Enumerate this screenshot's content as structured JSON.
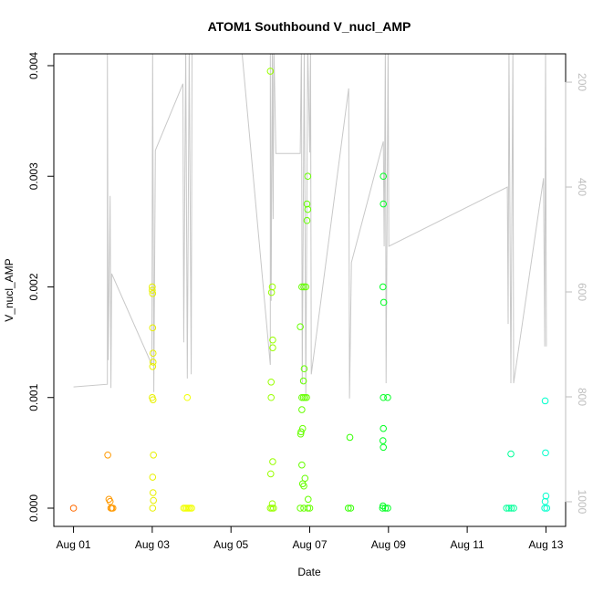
{
  "chart_data": {
    "type": "scatter",
    "title": "ATOM1 Southbound V_nucl_AMP",
    "x_label": "Date",
    "y_label": "V_nucl_AMP",
    "xlim": [
      0.5,
      13.5
    ],
    "xticks": [
      {
        "value": 1,
        "label": "Aug 01"
      },
      {
        "value": 3,
        "label": "Aug 03"
      },
      {
        "value": 5,
        "label": "Aug 05"
      },
      {
        "value": 7,
        "label": "Aug 07"
      },
      {
        "value": 9,
        "label": "Aug 09"
      },
      {
        "value": 11,
        "label": "Aug 11"
      },
      {
        "value": 13,
        "label": "Aug 13"
      }
    ],
    "ylim": [
      -0.000165,
      0.004107
    ],
    "yticks": [
      {
        "value": 0,
        "label": "0.000"
      },
      0.001,
      0.002,
      0.003,
      0.004
    ],
    "y2lim": [
      1047,
      146
    ],
    "y2ticks": [
      200,
      400,
      600,
      800,
      1000
    ],
    "y2_color": "#bebebe",
    "series": [
      {
        "color": "#ff6a00",
        "x": [
          1.0
        ],
        "values": [
          0
        ]
      },
      {
        "color": "#ff9900",
        "x": [
          1.87,
          1.9,
          1.93,
          1.95,
          1.97,
          2.0
        ],
        "values": [
          0.00048,
          8e-05,
          6e-05,
          0,
          0,
          0
        ]
      },
      {
        "color": "#e8f000",
        "x": [
          3.0,
          3.0,
          3.01,
          3.01,
          3.02,
          3.02,
          3.01,
          3.0,
          3.02,
          3.03,
          3.01,
          3.02,
          3.03,
          3.01
        ],
        "values": [
          0.002,
          0.00197,
          0.00194,
          0.00163,
          0.0014,
          0.00132,
          0.00128,
          0.001,
          0.00098,
          0.00048,
          0.00028,
          0.00014,
          7e-05,
          0
        ]
      },
      {
        "color": "#f2ff00",
        "x": [
          3.89,
          3.8,
          3.84,
          3.88,
          3.92,
          3.96,
          4.0
        ],
        "values": [
          0.001,
          0,
          0,
          0,
          0,
          0,
          0
        ]
      },
      {
        "color": "#99ff00",
        "x": [
          6.0,
          6.05,
          6.03,
          6.06,
          6.06,
          6.02,
          6.02,
          6.06,
          6.01,
          6.05,
          6.0,
          6.04,
          6.08
        ],
        "values": [
          0.00395,
          0.002,
          0.00195,
          0.00152,
          0.00145,
          0.00114,
          0.001,
          0.00042,
          0.00031,
          4e-05,
          0,
          0,
          0
        ]
      },
      {
        "color": "#66ff00",
        "x": [
          6.95,
          6.93,
          6.95,
          6.93,
          6.8,
          6.85,
          6.9,
          6.76,
          6.86,
          6.84,
          6.8,
          6.84,
          6.88,
          6.92,
          6.8,
          6.82,
          6.78,
          6.77,
          6.8,
          6.88,
          6.82,
          6.85,
          6.96,
          6.76,
          6.85,
          6.95,
          7.0
        ],
        "values": [
          0.003,
          0.00275,
          0.0027,
          0.0026,
          0.002,
          0.002,
          0.002,
          0.00164,
          0.00126,
          0.00115,
          0.001,
          0.001,
          0.001,
          0.001,
          0.00089,
          0.00072,
          0.00069,
          0.00067,
          0.00039,
          0.00027,
          0.00022,
          0.0002,
          8e-05,
          0,
          0,
          0,
          0
        ]
      },
      {
        "color": "#33ff00",
        "x": [
          8.02,
          7.98,
          8.04
        ],
        "values": [
          0.00064,
          0,
          0
        ]
      },
      {
        "color": "#00ff22",
        "x": [
          8.87,
          8.87,
          8.86,
          8.88,
          8.87,
          8.98,
          8.87,
          8.86,
          8.87,
          8.86,
          8.85,
          8.92,
          8.98
        ],
        "values": [
          0.003,
          0.00275,
          0.002,
          0.00186,
          0.001,
          0.001,
          0.00072,
          0.00061,
          0.00055,
          2e-05,
          0,
          0,
          0
        ]
      },
      {
        "color": "#00ff99",
        "x": [
          12.11,
          12.0,
          12.06,
          12.12,
          12.18
        ],
        "values": [
          0.00049,
          0,
          0,
          0,
          0
        ]
      },
      {
        "color": "#00ffcc",
        "x": [
          12.98,
          12.99,
          13.0,
          12.98,
          12.97,
          13.02
        ],
        "values": [
          0.00097,
          0.0005,
          0.00011,
          6e-05,
          0,
          0
        ]
      }
    ],
    "line": {
      "color": "#c8c8c8",
      "axis": "y2",
      "x": [
        1.0,
        1.86,
        1.86,
        1.88,
        1.93,
        1.95,
        1.97,
        2.99,
        3.01,
        3.04,
        3.08,
        3.78,
        3.8,
        3.85,
        3.89,
        3.94,
        3.99,
        4.01,
        5.28,
        6.0,
        6.0,
        6.02,
        6.05,
        6.07,
        6.09,
        6.14,
        6.76,
        6.79,
        6.81,
        6.86,
        6.9,
        6.95,
        7.0,
        7.02,
        7.04,
        7.99,
        8.01,
        8.06,
        8.87,
        8.89,
        8.92,
        8.94,
        8.99,
        9.01,
        12.02,
        12.04,
        12.06,
        12.11,
        12.16,
        12.18,
        12.94,
        12.97,
        12.99,
        13.01
      ],
      "values": [
        781,
        776,
        130,
        730,
        417,
        783,
        565,
        739,
        130,
        791,
        330,
        203,
        696,
        130,
        765,
        130,
        757,
        130,
        144,
        739,
        130,
        617,
        130,
        461,
        130,
        336,
        336,
        130,
        774,
        130,
        800,
        130,
        334,
        130,
        757,
        212,
        803,
        544,
        313,
        513,
        130,
        774,
        130,
        513,
        400,
        661,
        130,
        774,
        130,
        774,
        383,
        704,
        130,
        704
      ]
    }
  }
}
